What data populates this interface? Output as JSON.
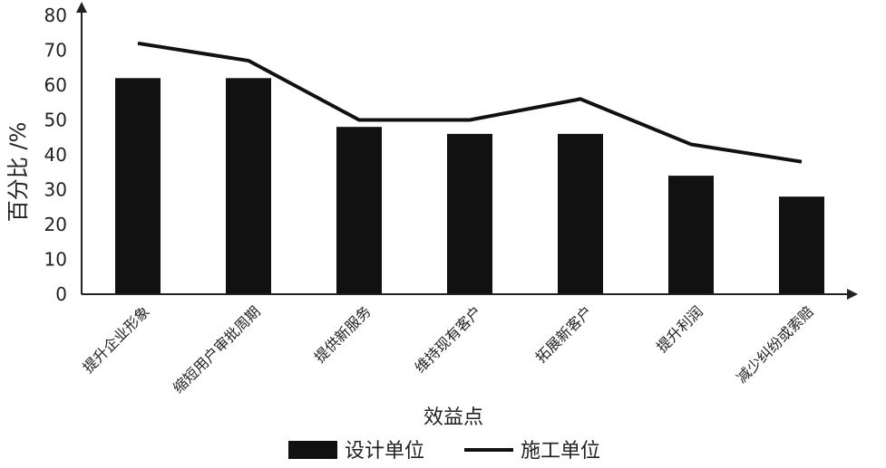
{
  "chart_data": {
    "type": "bar",
    "title": "",
    "xlabel": "效益点",
    "ylabel": "百分比 /%",
    "ylim": [
      0,
      80
    ],
    "yticks": [
      0,
      10,
      20,
      30,
      40,
      50,
      60,
      70,
      80
    ],
    "grid": false,
    "legend_position": "bottom",
    "categories": [
      "提升企业形象",
      "缩短用户审批周期",
      "提供新服务",
      "维持现有客户",
      "拓展新客户",
      "提升利润",
      "减少纠纷或索赔"
    ],
    "series": [
      {
        "name": "设计单位",
        "type": "bar",
        "color": "#111111",
        "values": [
          62,
          62,
          48,
          46,
          46,
          34,
          28
        ]
      },
      {
        "name": "施工单位",
        "type": "line",
        "color": "#111111",
        "values": [
          72,
          67,
          50,
          50,
          56,
          43,
          38
        ]
      }
    ]
  }
}
